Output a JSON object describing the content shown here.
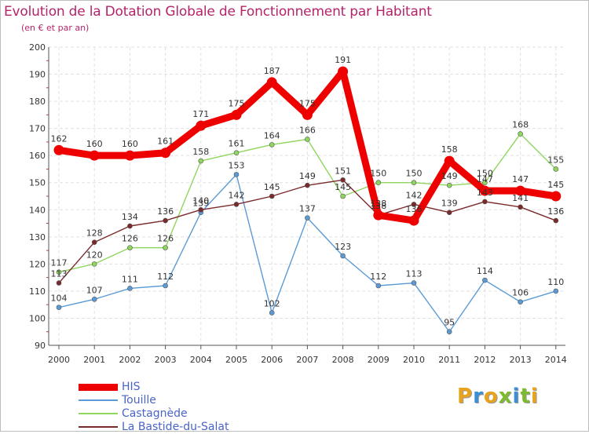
{
  "title": "Evolution de la Dotation Globale de Fonctionnement par Habitant",
  "subtitle": "(en € et par an)",
  "brand": {
    "letters": [
      "P",
      "r",
      "o",
      "x",
      "i",
      "t",
      "i"
    ],
    "colors": [
      "#e8a31c",
      "#3a8fd6",
      "#e8a31c",
      "#7dbb2e",
      "#3a8fd6",
      "#7dbb2e",
      "#e8a31c"
    ]
  },
  "chart_data": {
    "type": "line",
    "x": [
      "2000",
      "2001",
      "2002",
      "2003",
      "2004",
      "2005",
      "2006",
      "2007",
      "2008",
      "2009",
      "2010",
      "2011",
      "2012",
      "2013",
      "2014"
    ],
    "ylim": [
      90,
      200
    ],
    "yticks": [
      "90",
      "100",
      "110",
      "120",
      "130",
      "140",
      "150",
      "160",
      "170",
      "180",
      "190",
      "200"
    ],
    "grid": true,
    "legend_position": "bottom-left",
    "series": [
      {
        "name": "HIS",
        "color": "#ee0000",
        "style": "thick",
        "values": [
          162,
          160,
          160,
          161,
          171,
          175,
          187,
          175,
          191,
          138,
          136,
          158,
          147,
          147,
          145
        ]
      },
      {
        "name": "Touille",
        "color": "#5b9bd5",
        "style": "thin",
        "values": [
          104,
          107,
          111,
          112,
          139,
          153,
          102,
          137,
          123,
          112,
          113,
          95,
          114,
          106,
          110
        ]
      },
      {
        "name": "Castagnède",
        "color": "#8fd65f",
        "style": "thin",
        "values": [
          117,
          120,
          126,
          126,
          158,
          161,
          164,
          166,
          145,
          150,
          150,
          149,
          150,
          168,
          155
        ]
      },
      {
        "name": "La Bastide-du-Salat",
        "color": "#7a2a2a",
        "style": "thin",
        "values": [
          113,
          128,
          134,
          136,
          140,
          142,
          145,
          149,
          151,
          138,
          142,
          139,
          143,
          141,
          136
        ]
      }
    ]
  }
}
